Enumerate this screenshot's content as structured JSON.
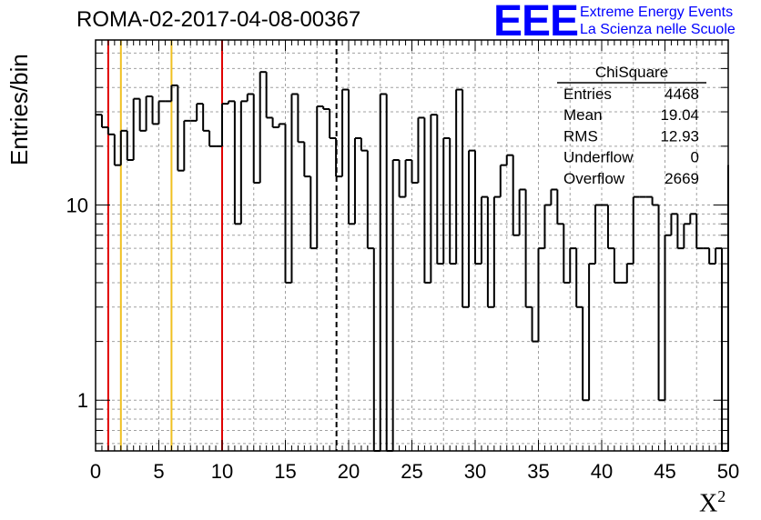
{
  "header": {
    "title": "ROMA-02-2017-04-08-00367",
    "logo": "EEE",
    "logo_line1": "Extreme Energy Events",
    "logo_line2": "La Scienza nelle Scuole"
  },
  "stats": {
    "title": "ChiSquare",
    "rows": [
      {
        "label": "Entries",
        "value": "4468"
      },
      {
        "label": "Mean",
        "value": "19.04"
      },
      {
        "label": "RMS",
        "value": "12.93"
      },
      {
        "label": "Underflow",
        "value": "0"
      },
      {
        "label": "Overflow",
        "value": "2669"
      }
    ]
  },
  "colors": {
    "histogram": "#000000",
    "red_lines": "#e00000",
    "orange_lines": "#f0c020",
    "mean_line": "#000000",
    "grid": "#a0a0a0"
  },
  "chart_data": {
    "type": "bar",
    "style": "step-histogram",
    "title": "ROMA-02-2017-04-08-00367",
    "xlabel": "X",
    "xlabel_sup": "2",
    "ylabel": "Entries/bin",
    "xlim": [
      0,
      50
    ],
    "ylim": [
      0.55,
      70
    ],
    "yscale": "log",
    "grid": true,
    "bin_width": 0.5,
    "x_ticks": [
      "0",
      "5",
      "10",
      "15",
      "20",
      "25",
      "30",
      "35",
      "40",
      "45",
      "50"
    ],
    "x_tick_values": [
      0,
      5,
      10,
      15,
      20,
      25,
      30,
      35,
      40,
      45,
      50
    ],
    "y_ticks": [
      "1",
      "10"
    ],
    "y_tick_values": [
      1,
      10
    ],
    "values": [
      29,
      25,
      23,
      16,
      24,
      17,
      35,
      24,
      36,
      26,
      34,
      34,
      41,
      15,
      27,
      27,
      33,
      24,
      20,
      20,
      33,
      34,
      8,
      34,
      37,
      13,
      48,
      28,
      25,
      26,
      4,
      37,
      21,
      14,
      6,
      32,
      31,
      22,
      14,
      39,
      8,
      22,
      19,
      6,
      0,
      37,
      0,
      17,
      11,
      17,
      13,
      28,
      4,
      29,
      5,
      22,
      5,
      39,
      3,
      19,
      5,
      11,
      3,
      11,
      16,
      18,
      7,
      12,
      3,
      2,
      6,
      10,
      12,
      8,
      4,
      6,
      3,
      1,
      5,
      10,
      10,
      6,
      4,
      4,
      5,
      11,
      11,
      11,
      10,
      1,
      7,
      9,
      6,
      8,
      9,
      6,
      6,
      5,
      6,
      0
    ],
    "overflow_edge": 16,
    "vertical_lines": [
      {
        "x": 1,
        "color": "red"
      },
      {
        "x": 2,
        "color": "orange"
      },
      {
        "x": 6,
        "color": "orange"
      },
      {
        "x": 10,
        "color": "red"
      },
      {
        "x": 19.04,
        "color": "black-dashed"
      }
    ]
  }
}
